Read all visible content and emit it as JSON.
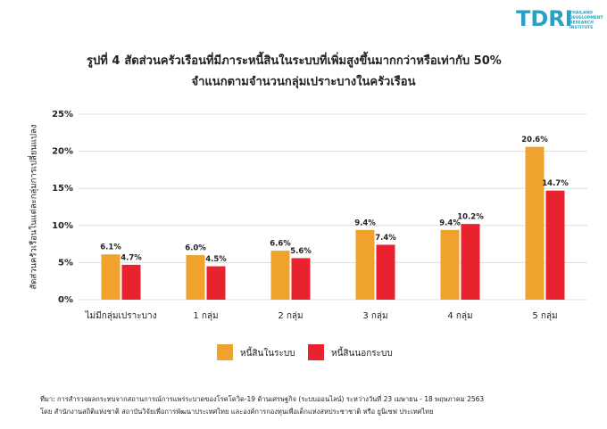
{
  "logo": {
    "name": "TDRI",
    "lines": [
      "THAILAND",
      "DEVELOPMENT",
      "RESEARCH",
      "INSTITUTE"
    ]
  },
  "chart_data": {
    "type": "bar",
    "figure_label": "รูปที่ 4",
    "title": "สัดส่วนครัวเรือนที่มีภาระหนี้สินในระบบที่เพิ่มสูงขึ้นมากกว่าหรือเท่ากับ 50%",
    "subtitle": "จำแนกตามจำนวนกลุ่มเปราะบางในครัวเรือน",
    "y_label": "สัดส่วนครัวเรือนในแต่ละกลุ่มการเปลี่ยนแปลง",
    "categories": [
      "ไม่มีกลุ่มเปราะบาง",
      "1 กลุ่ม",
      "2 กลุ่ม",
      "3 กลุ่ม",
      "4 กลุ่ม",
      "5 กลุ่ม"
    ],
    "series": [
      {
        "name": "หนี้สินในระบบ",
        "color": "#f0a22e",
        "values": [
          6.1,
          6.0,
          6.6,
          9.4,
          9.4,
          20.6
        ],
        "value_labels": [
          "6.1%",
          "6.0%",
          "6.6%",
          "9.4%",
          "9.4%",
          "20.6%"
        ]
      },
      {
        "name": "หนี้สินนอกระบบ",
        "color": "#e8232f",
        "values": [
          4.7,
          4.5,
          5.6,
          7.4,
          10.2,
          14.7
        ],
        "value_labels": [
          "4.7%",
          "4.5%",
          "5.6%",
          "7.4%",
          "10.2%",
          "14.7%"
        ]
      }
    ],
    "ylim": [
      0,
      25
    ],
    "yticks": [
      {
        "value": 0,
        "label": "0%"
      },
      {
        "value": 5,
        "label": "5%"
      },
      {
        "value": 10,
        "label": "10%"
      },
      {
        "value": 15,
        "label": "15%"
      },
      {
        "value": 20,
        "label": "20%"
      },
      {
        "value": 25,
        "label": "25%"
      }
    ],
    "grid": true,
    "source": [
      "ที่มา: การสำรวจผลกระทบจากสถานการณ์การแพร่ระบาดของโรคโควิด-19 ด้านเศรษฐกิจ (ระบบออนไลน์) ระหว่างวันที่ 23 เมษายน - 18 พฤษภาคม 2563",
      "โดย สำนักงานสถิติแห่งชาติ สถาบันวิจัยเพื่อการพัฒนาประเทศไทย และองค์การกองทุนเพื่อเด็กแห่งสหประชาชาติ หรือ ยูนิเซฟ ประเทศไทย"
    ]
  }
}
